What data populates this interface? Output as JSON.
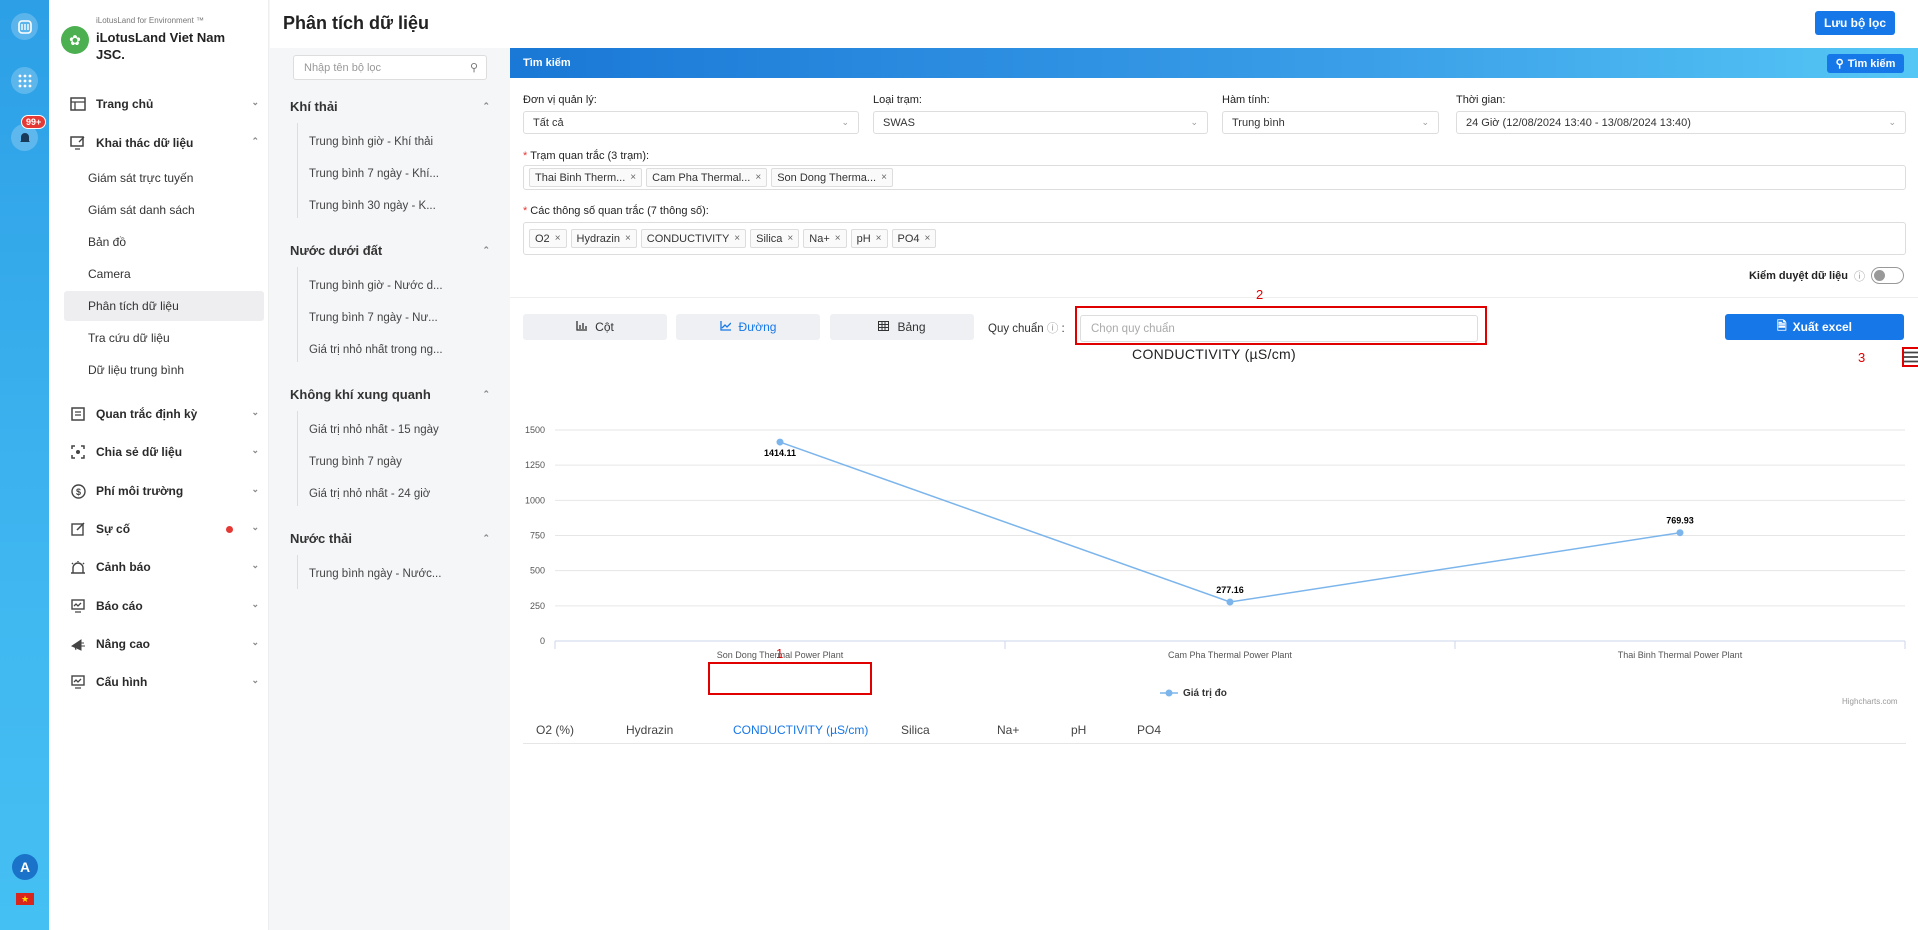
{
  "rail": {
    "notif_badge": "99+",
    "avatar_letter": "A",
    "flag": "★"
  },
  "brand": {
    "tagline": "iLotusLand for Environment ™",
    "name": "iLotusLand Viet Nam JSC."
  },
  "nav": [
    {
      "label": "Trang chủ",
      "icon": "home-icon"
    },
    {
      "label": "Khai thác dữ liệu",
      "icon": "data-mining-icon"
    },
    {
      "label": "Quan trắc định kỳ",
      "icon": "periodic-monitoring-icon"
    },
    {
      "label": "Chia sẻ dữ liệu",
      "icon": "share-icon"
    },
    {
      "label": "Phí môi trường",
      "icon": "fee-icon"
    },
    {
      "label": "Sự cố",
      "icon": "incident-icon"
    },
    {
      "label": "Cảnh báo",
      "icon": "alarm-icon"
    },
    {
      "label": "Báo cáo",
      "icon": "report-icon"
    },
    {
      "label": "Nâng cao",
      "icon": "advanced-icon"
    },
    {
      "label": "Cấu hình",
      "icon": "config-icon"
    }
  ],
  "subnav": [
    "Giám sát trực tuyến",
    "Giám sát danh sách",
    "Bản đồ",
    "Camera",
    "Phân tích dữ liệu",
    "Tra cứu dữ liệu",
    "Dữ liệu trung bình"
  ],
  "page": {
    "title": "Phân tích dữ liệu",
    "save_filter": "Lưu bộ lọc"
  },
  "filters": {
    "search_placeholder": "Nhập tên bộ lọc",
    "groups": [
      {
        "title": "Khí thải",
        "items": [
          "Trung bình giờ - Khí thải",
          "Trung bình 7 ngày - Khí...",
          "Trung bình 30 ngày - K..."
        ]
      },
      {
        "title": "Nước dưới đất",
        "items": [
          "Trung bình giờ - Nước d...",
          "Trung bình 7 ngày - Nư...",
          "Giá trị nhỏ nhất trong ng..."
        ]
      },
      {
        "title": "Không khí xung quanh",
        "items": [
          "Giá trị nhỏ nhất - 15 ngày",
          "Trung bình 7 ngày",
          "Giá trị nhỏ nhất - 24 giờ"
        ]
      },
      {
        "title": "Nước thải",
        "items": [
          "Trung bình ngày - Nước..."
        ]
      }
    ]
  },
  "search": {
    "title": "Tìm kiếm",
    "button": "Tìm kiếm",
    "unit_label": "Đơn vị quản lý:",
    "unit_value": "Tất cả",
    "type_label": "Loại trạm:",
    "type_value": "SWAS",
    "func_label": "Hàm tính:",
    "func_value": "Trung bình",
    "time_label": "Thời gian:",
    "time_value": "24 Giờ (12/08/2024 13:40 - 13/08/2024 13:40)",
    "stations_label": "Trạm quan trắc (3 trạm):",
    "stations": [
      "Thai Binh Therm...",
      "Cam Pha Thermal...",
      "Son Dong Therma..."
    ],
    "params_label": "Các thông số quan trắc (7 thông số):",
    "params": [
      "O2",
      "Hydrazin",
      "CONDUCTIVITY",
      "Silica",
      "Na+",
      "pH",
      "PO4"
    ]
  },
  "review_label": "Kiểm duyệt dữ liệu",
  "view_tabs": [
    {
      "label": "Cột",
      "icon": "bar-chart-icon"
    },
    {
      "label": "Đường",
      "icon": "line-chart-icon"
    },
    {
      "label": "Bảng",
      "icon": "table-icon"
    }
  ],
  "standard": {
    "label": "Quy chuẩn",
    "placeholder": "Chọn quy chuẩn"
  },
  "excel_button": "Xuất excel",
  "annotations": [
    "1",
    "2",
    "3"
  ],
  "param_tabs": [
    "O2 (%)",
    "Hydrazin",
    "CONDUCTIVITY (µS/cm)",
    "Silica",
    "Na+",
    "pH",
    "PO4"
  ],
  "credit": "Highcharts.com",
  "chart_data": {
    "type": "line",
    "title": "CONDUCTIVITY (µS/cm)",
    "categories": [
      "Son Dong Thermal Power Plant",
      "Cam Pha Thermal Power Plant",
      "Thai Binh Thermal Power Plant"
    ],
    "series": [
      {
        "name": "Giá trị đo",
        "values": [
          1414.11,
          277.16,
          769.93
        ],
        "labels": [
          "1414.11",
          "277.16",
          "769.93"
        ],
        "color": "#7cb5ec"
      }
    ],
    "yticks": [
      "0",
      "250",
      "500",
      "750",
      "1000",
      "1250",
      "1500"
    ],
    "ylim": [
      0,
      1500
    ],
    "legend": "bottom-center"
  }
}
